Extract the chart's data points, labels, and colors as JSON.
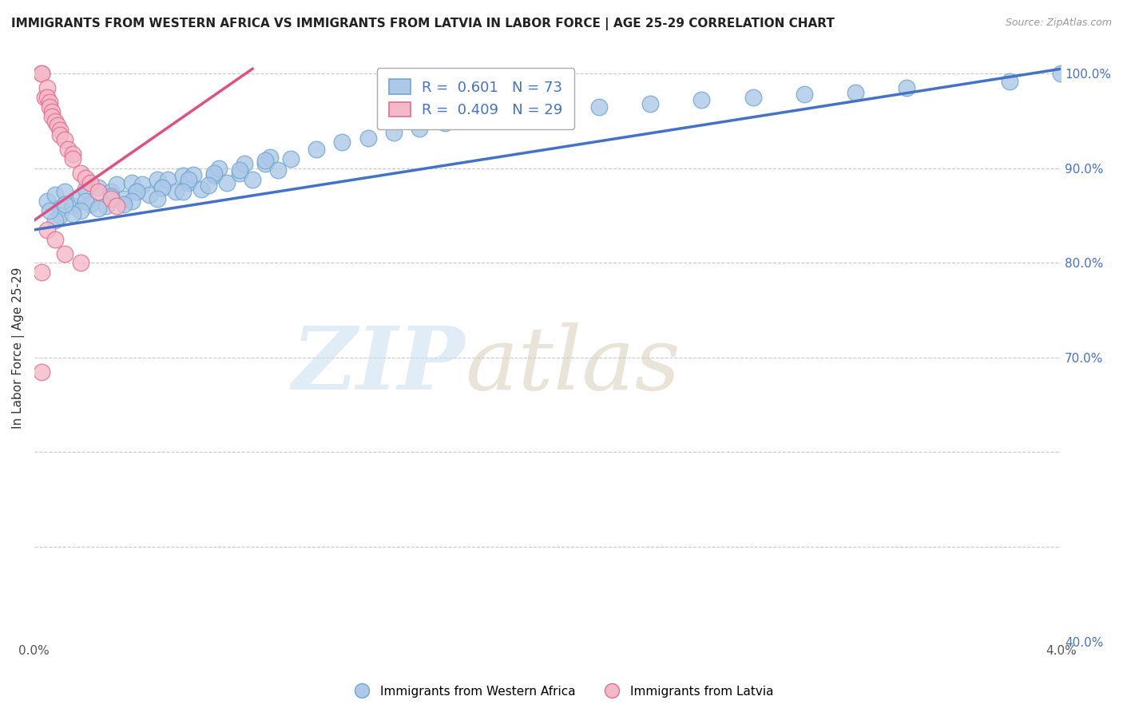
{
  "title": "IMMIGRANTS FROM WESTERN AFRICA VS IMMIGRANTS FROM LATVIA IN LABOR FORCE | AGE 25-29 CORRELATION CHART",
  "source": "Source: ZipAtlas.com",
  "ylabel": "In Labor Force | Age 25-29",
  "x_min": 0.0,
  "x_max": 0.04,
  "y_min": 0.4,
  "y_max": 1.02,
  "y_ticks": [
    0.4,
    0.5,
    0.6,
    0.7,
    0.8,
    0.9,
    1.0
  ],
  "y_tick_labels": [
    "40.0%",
    "",
    "",
    "70.0%",
    "80.0%",
    "90.0%",
    "100.0%"
  ],
  "x_ticks": [
    0.0,
    0.01,
    0.02,
    0.03,
    0.04
  ],
  "x_tick_labels": [
    "0.0%",
    "",
    "",
    "",
    "4.0%"
  ],
  "blue_R": 0.601,
  "blue_N": 73,
  "pink_R": 0.409,
  "pink_N": 29,
  "blue_color": "#adc8e8",
  "blue_edge": "#6fa8d0",
  "blue_line_color": "#4472c4",
  "pink_color": "#f4b8c8",
  "pink_edge": "#e07090",
  "pink_line_color": "#e05080",
  "legend_text_color": "#4472c4",
  "blue_line_x": [
    0.0,
    0.04
  ],
  "blue_line_y": [
    0.835,
    1.005
  ],
  "pink_line_x": [
    0.0,
    0.0085
  ],
  "pink_line_y": [
    0.845,
    1.005
  ],
  "blue_scatter_x": [
    0.0005,
    0.0008,
    0.001,
    0.0012,
    0.0015,
    0.001,
    0.0008,
    0.0006,
    0.0018,
    0.002,
    0.0022,
    0.0025,
    0.002,
    0.0018,
    0.0015,
    0.0012,
    0.003,
    0.0032,
    0.0035,
    0.0038,
    0.003,
    0.0028,
    0.0025,
    0.004,
    0.0042,
    0.0045,
    0.0048,
    0.004,
    0.0038,
    0.0035,
    0.005,
    0.0052,
    0.0055,
    0.0058,
    0.005,
    0.0048,
    0.006,
    0.0062,
    0.0065,
    0.006,
    0.0058,
    0.007,
    0.0072,
    0.0075,
    0.007,
    0.0068,
    0.008,
    0.0082,
    0.0085,
    0.008,
    0.009,
    0.0092,
    0.0095,
    0.009,
    0.01,
    0.011,
    0.012,
    0.013,
    0.014,
    0.015,
    0.016,
    0.018,
    0.019,
    0.02,
    0.022,
    0.024,
    0.026,
    0.028,
    0.03,
    0.032,
    0.034,
    0.038,
    0.04
  ],
  "blue_scatter_y": [
    0.865,
    0.872,
    0.858,
    0.875,
    0.86,
    0.85,
    0.845,
    0.855,
    0.87,
    0.878,
    0.862,
    0.88,
    0.865,
    0.855,
    0.852,
    0.862,
    0.875,
    0.883,
    0.868,
    0.885,
    0.87,
    0.86,
    0.858,
    0.875,
    0.883,
    0.872,
    0.888,
    0.875,
    0.865,
    0.862,
    0.88,
    0.888,
    0.875,
    0.892,
    0.88,
    0.868,
    0.885,
    0.893,
    0.878,
    0.888,
    0.875,
    0.892,
    0.9,
    0.885,
    0.895,
    0.882,
    0.895,
    0.905,
    0.888,
    0.898,
    0.905,
    0.912,
    0.898,
    0.908,
    0.91,
    0.92,
    0.928,
    0.932,
    0.938,
    0.942,
    0.948,
    0.952,
    0.958,
    0.96,
    0.965,
    0.968,
    0.972,
    0.975,
    0.978,
    0.98,
    0.985,
    0.992,
    1.0
  ],
  "pink_scatter_x": [
    0.0003,
    0.0003,
    0.0004,
    0.0005,
    0.0005,
    0.0006,
    0.0006,
    0.0007,
    0.0007,
    0.0008,
    0.0009,
    0.001,
    0.001,
    0.0012,
    0.0013,
    0.0015,
    0.0015,
    0.0018,
    0.002,
    0.0022,
    0.0025,
    0.003,
    0.0032,
    0.0005,
    0.0008,
    0.0012,
    0.0018,
    0.0003,
    0.0003
  ],
  "pink_scatter_y": [
    1.0,
    1.0,
    0.975,
    0.985,
    0.975,
    0.97,
    0.965,
    0.96,
    0.955,
    0.95,
    0.945,
    0.94,
    0.935,
    0.93,
    0.92,
    0.915,
    0.91,
    0.895,
    0.89,
    0.885,
    0.875,
    0.868,
    0.86,
    0.835,
    0.825,
    0.81,
    0.8,
    0.685,
    0.79
  ]
}
